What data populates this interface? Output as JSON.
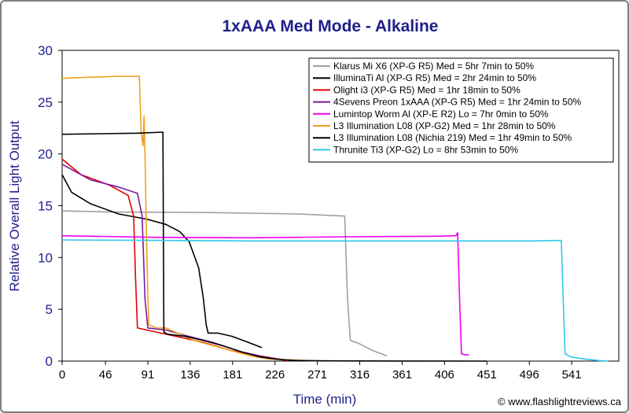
{
  "chart_data": {
    "type": "line",
    "title": "1xAAA Med Mode - Alkaline",
    "xlabel": "Time (min)",
    "ylabel": "Relative Overall Light Output",
    "xlim": [
      0,
      591
    ],
    "ylim": [
      0,
      30
    ],
    "x_ticks": [
      0,
      46,
      91,
      136,
      181,
      226,
      271,
      316,
      361,
      406,
      451,
      496,
      541
    ],
    "y_ticks": [
      0,
      5,
      10,
      15,
      20,
      25,
      30
    ],
    "grid": false,
    "legend_position": "top-right",
    "credit": "© www.flashlightreviews.ca",
    "series": [
      {
        "name": "Klarus Mi X6 (XP-G R5) Med = 5hr 7min to 50%",
        "color": "#a0a0a0",
        "points": [
          [
            0,
            14.5
          ],
          [
            50,
            14.4
          ],
          [
            150,
            14.35
          ],
          [
            250,
            14.2
          ],
          [
            300,
            14.0
          ],
          [
            303,
            6
          ],
          [
            306,
            2.0
          ],
          [
            315,
            1.7
          ],
          [
            330,
            1.0
          ],
          [
            345,
            0.5
          ]
        ]
      },
      {
        "name": "IlluminaTi Al (XP-G R5) Med = 2hr 24min to 50%",
        "color": "#000000",
        "points": [
          [
            0,
            18.0
          ],
          [
            10,
            16.3
          ],
          [
            30,
            15.2
          ],
          [
            60,
            14.2
          ],
          [
            90,
            13.7
          ],
          [
            110,
            13.2
          ],
          [
            125,
            12.5
          ],
          [
            135,
            11.5
          ],
          [
            145,
            9
          ],
          [
            150,
            6
          ],
          [
            153,
            3.5
          ],
          [
            155,
            2.7
          ],
          [
            165,
            2.7
          ],
          [
            180,
            2.4
          ],
          [
            195,
            1.9
          ],
          [
            212,
            1.3
          ]
        ]
      },
      {
        "name": "Olight i3 (XP-G R5) Med = 1hr 18min to 50%",
        "color": "#e00000",
        "points": [
          [
            0,
            19.5
          ],
          [
            20,
            18.0
          ],
          [
            50,
            17.0
          ],
          [
            70,
            16.0
          ],
          [
            76,
            14
          ],
          [
            78,
            8
          ],
          [
            80,
            3.2
          ],
          [
            90,
            3.0
          ],
          [
            120,
            2.4
          ],
          [
            150,
            1.8
          ],
          [
            180,
            1.0
          ],
          [
            210,
            0.5
          ],
          [
            230,
            0.2
          ],
          [
            240,
            0
          ]
        ]
      },
      {
        "name": "4Sevens Preon 1xAAA (XP-G R5) Med = 1hr 24min to 50%",
        "color": "#7a1aa0",
        "points": [
          [
            0,
            19.0
          ],
          [
            30,
            17.5
          ],
          [
            60,
            16.8
          ],
          [
            80,
            16.2
          ],
          [
            85,
            14
          ],
          [
            88,
            6
          ],
          [
            91,
            3.2
          ],
          [
            110,
            3.0
          ],
          [
            130,
            2.5
          ],
          [
            160,
            1.8
          ],
          [
            190,
            0.9
          ],
          [
            220,
            0.3
          ],
          [
            240,
            0.1
          ]
        ]
      },
      {
        "name": "Lumintop Worm Al (XP-E R2) Lo = 7hr 0min to 50%",
        "color": "#ee00ee",
        "points": [
          [
            0,
            12.1
          ],
          [
            100,
            11.95
          ],
          [
            200,
            11.9
          ],
          [
            300,
            12.0
          ],
          [
            400,
            12.05
          ],
          [
            418,
            12.1
          ],
          [
            420,
            12.4
          ],
          [
            422,
            6
          ],
          [
            424,
            0.7
          ],
          [
            428,
            0.6
          ],
          [
            432,
            0.6
          ]
        ]
      },
      {
        "name": "L3 Illumination L08 (XP-G2) Med = 1hr 28min to 50%",
        "color": "#f0a020",
        "points": [
          [
            0,
            27.3
          ],
          [
            30,
            27.4
          ],
          [
            60,
            27.5
          ],
          [
            82,
            27.5
          ],
          [
            84,
            22
          ],
          [
            86,
            20.8
          ],
          [
            87,
            23.7
          ],
          [
            88,
            20
          ],
          [
            90,
            10
          ],
          [
            92,
            3.5
          ],
          [
            100,
            3.2
          ],
          [
            110,
            3.2
          ],
          [
            120,
            2.8
          ],
          [
            140,
            2.0
          ],
          [
            160,
            1.5
          ],
          [
            180,
            1.0
          ],
          [
            200,
            0.5
          ],
          [
            220,
            0.2
          ],
          [
            260,
            0.05
          ],
          [
            280,
            0
          ]
        ]
      },
      {
        "name": "L3 Illumination L08 (Nichia 219) Med = 1hr 49min to 50%",
        "color": "#000000",
        "points": [
          [
            0,
            21.9
          ],
          [
            40,
            21.95
          ],
          [
            80,
            22.0
          ],
          [
            107,
            22.1
          ],
          [
            108,
            2.8
          ],
          [
            112,
            2.6
          ],
          [
            130,
            2.4
          ],
          [
            150,
            2.0
          ],
          [
            170,
            1.5
          ],
          [
            190,
            0.9
          ],
          [
            210,
            0.4
          ],
          [
            230,
            0.15
          ],
          [
            250,
            0.05
          ],
          [
            280,
            0.02
          ],
          [
            350,
            0.01
          ],
          [
            451,
            0
          ]
        ]
      },
      {
        "name": "Thrunite Ti3 (XP-G2) Lo = 8hr 53min to 50%",
        "color": "#30c8e8",
        "points": [
          [
            0,
            11.7
          ],
          [
            100,
            11.65
          ],
          [
            200,
            11.6
          ],
          [
            300,
            11.6
          ],
          [
            400,
            11.6
          ],
          [
            500,
            11.6
          ],
          [
            530,
            11.65
          ],
          [
            532,
            6
          ],
          [
            534,
            0.7
          ],
          [
            540,
            0.4
          ],
          [
            555,
            0.2
          ],
          [
            570,
            0.05
          ],
          [
            580,
            0
          ]
        ]
      }
    ]
  }
}
